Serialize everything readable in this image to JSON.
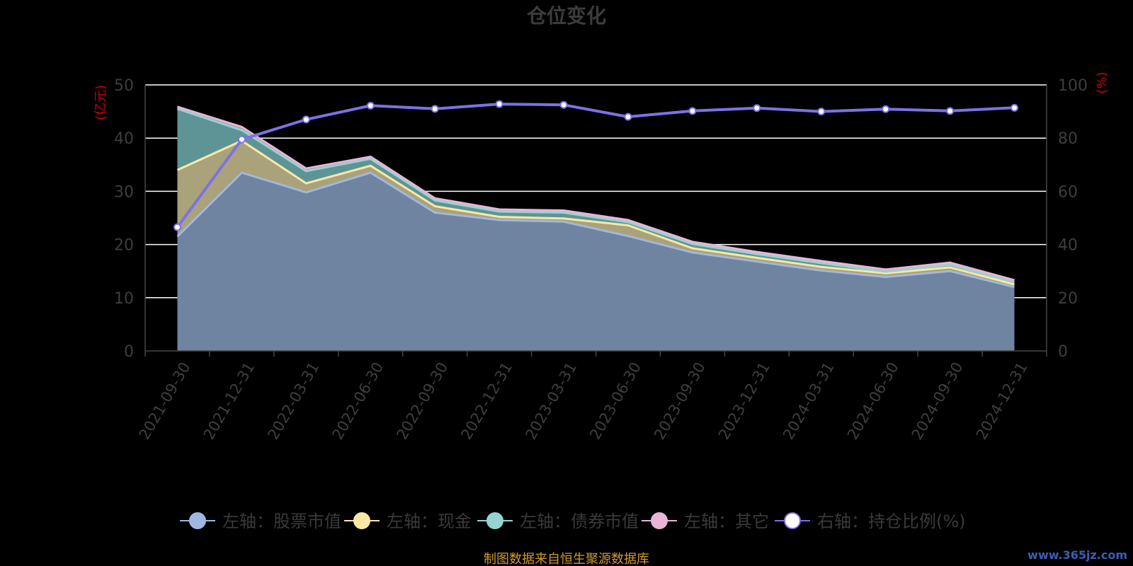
{
  "chart_data": {
    "type": "area",
    "title": "仓位变化",
    "categories": [
      "2021-09-30",
      "2021-12-31",
      "2022-03-31",
      "2022-06-30",
      "2022-09-30",
      "2022-12-31",
      "2023-03-31",
      "2023-06-30",
      "2023-09-30",
      "2023-12-31",
      "2024-03-31",
      "2024-06-30",
      "2024-09-30",
      "2024-12-31"
    ],
    "stacked": true,
    "series": [
      {
        "name": "左轴：股票市值",
        "axis": "left",
        "color": "#9fb7e1",
        "fill": "#6f84a1",
        "values": [
          21.5,
          33.5,
          29.8,
          33.5,
          26.0,
          24.6,
          24.3,
          21.6,
          18.5,
          16.8,
          15.1,
          13.9,
          15.0,
          12.0
        ]
      },
      {
        "name": "左轴：现金",
        "axis": "left",
        "color": "#fbe8a3",
        "fill": "#aaa27a",
        "values": [
          12.5,
          6.0,
          1.7,
          1.3,
          1.2,
          0.6,
          0.6,
          2.0,
          0.8,
          0.7,
          0.7,
          0.7,
          0.7,
          0.5
        ]
      },
      {
        "name": "左轴：债券市值",
        "axis": "left",
        "color": "#96d4d1",
        "fill": "#5f9496",
        "values": [
          11.5,
          2.0,
          2.3,
          1.3,
          1.1,
          1.0,
          1.1,
          0.6,
          0.8,
          0.7,
          0.7,
          0.3,
          0.5,
          0.4
        ]
      },
      {
        "name": "左轴：其它",
        "axis": "left",
        "color": "#e8b5d6",
        "fill": "#a090a8",
        "values": [
          0.4,
          0.6,
          0.5,
          0.4,
          0.4,
          0.4,
          0.4,
          0.4,
          0.4,
          0.4,
          0.4,
          0.4,
          0.4,
          0.4
        ]
      },
      {
        "name": "右轴：持仓比例(%)",
        "axis": "right",
        "type": "line",
        "color": "#7b72e6",
        "values": [
          46.5,
          79.5,
          87.0,
          92.2,
          91.0,
          92.8,
          92.5,
          88.0,
          90.2,
          91.3,
          90.0,
          90.9,
          90.2,
          91.4
        ]
      }
    ],
    "ylim_left": [
      0,
      50
    ],
    "ylim_right": [
      0,
      100
    ],
    "yticks_left": [
      "0",
      "10",
      "20",
      "30",
      "40",
      "50"
    ],
    "yticks_right": [
      "0",
      "20",
      "40",
      "60",
      "80",
      "100"
    ],
    "ylabel_left": "(亿元)",
    "ylabel_right": "(%)",
    "grid": true,
    "legend_position": "bottom"
  },
  "footer": {
    "source": "制图数据来自恒生聚源数据库",
    "watermark": "www.365jz.com"
  }
}
